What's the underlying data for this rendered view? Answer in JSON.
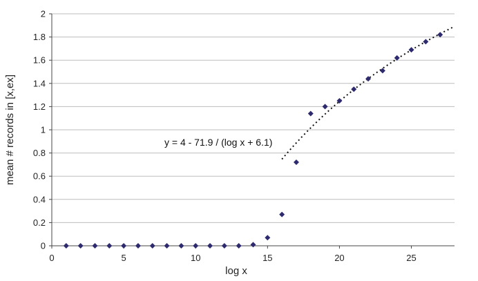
{
  "chart_data": {
    "type": "scatter",
    "title": "",
    "xlabel": "log x",
    "ylabel": "mean # records in [x,ex]",
    "xlim": [
      0,
      28
    ],
    "ylim": [
      0,
      2
    ],
    "x_ticks": [
      0,
      5,
      10,
      15,
      20,
      25
    ],
    "y_ticks": [
      0,
      0.2,
      0.4,
      0.6,
      0.8,
      1,
      1.2,
      1.4,
      1.6,
      1.8,
      2
    ],
    "x_tick_labels": [
      "0",
      "5",
      "10",
      "15",
      "20",
      "25"
    ],
    "y_tick_labels": [
      "0",
      "0.2",
      "0.4",
      "0.6",
      "0.8",
      "1",
      "1.2",
      "1.4",
      "1.6",
      "1.8",
      "2"
    ],
    "grid": "horizontal",
    "series": [
      {
        "marker": "diamond",
        "color": "#2e2a6e",
        "x": [
          1,
          2,
          3,
          4,
          5,
          6,
          7,
          8,
          9,
          10,
          11,
          12,
          13,
          14,
          15,
          16,
          17,
          18,
          19,
          20,
          21,
          22,
          23,
          24,
          25,
          26,
          27
        ],
        "y": [
          0,
          0,
          0,
          0,
          0,
          0,
          0,
          0,
          0,
          0,
          0,
          0,
          0,
          0.01,
          0.07,
          0.27,
          0.72,
          1.14,
          1.2,
          1.25,
          1.35,
          1.44,
          1.51,
          1.62,
          1.69,
          1.76,
          1.82
        ]
      }
    ],
    "fit": {
      "equation": "y = 4 - 71.9 / (log x + 6.1)",
      "a": 4,
      "b": 71.9,
      "c": 6.1,
      "x_range": [
        16,
        28
      ],
      "style": "dotted",
      "color": "#111111"
    }
  }
}
